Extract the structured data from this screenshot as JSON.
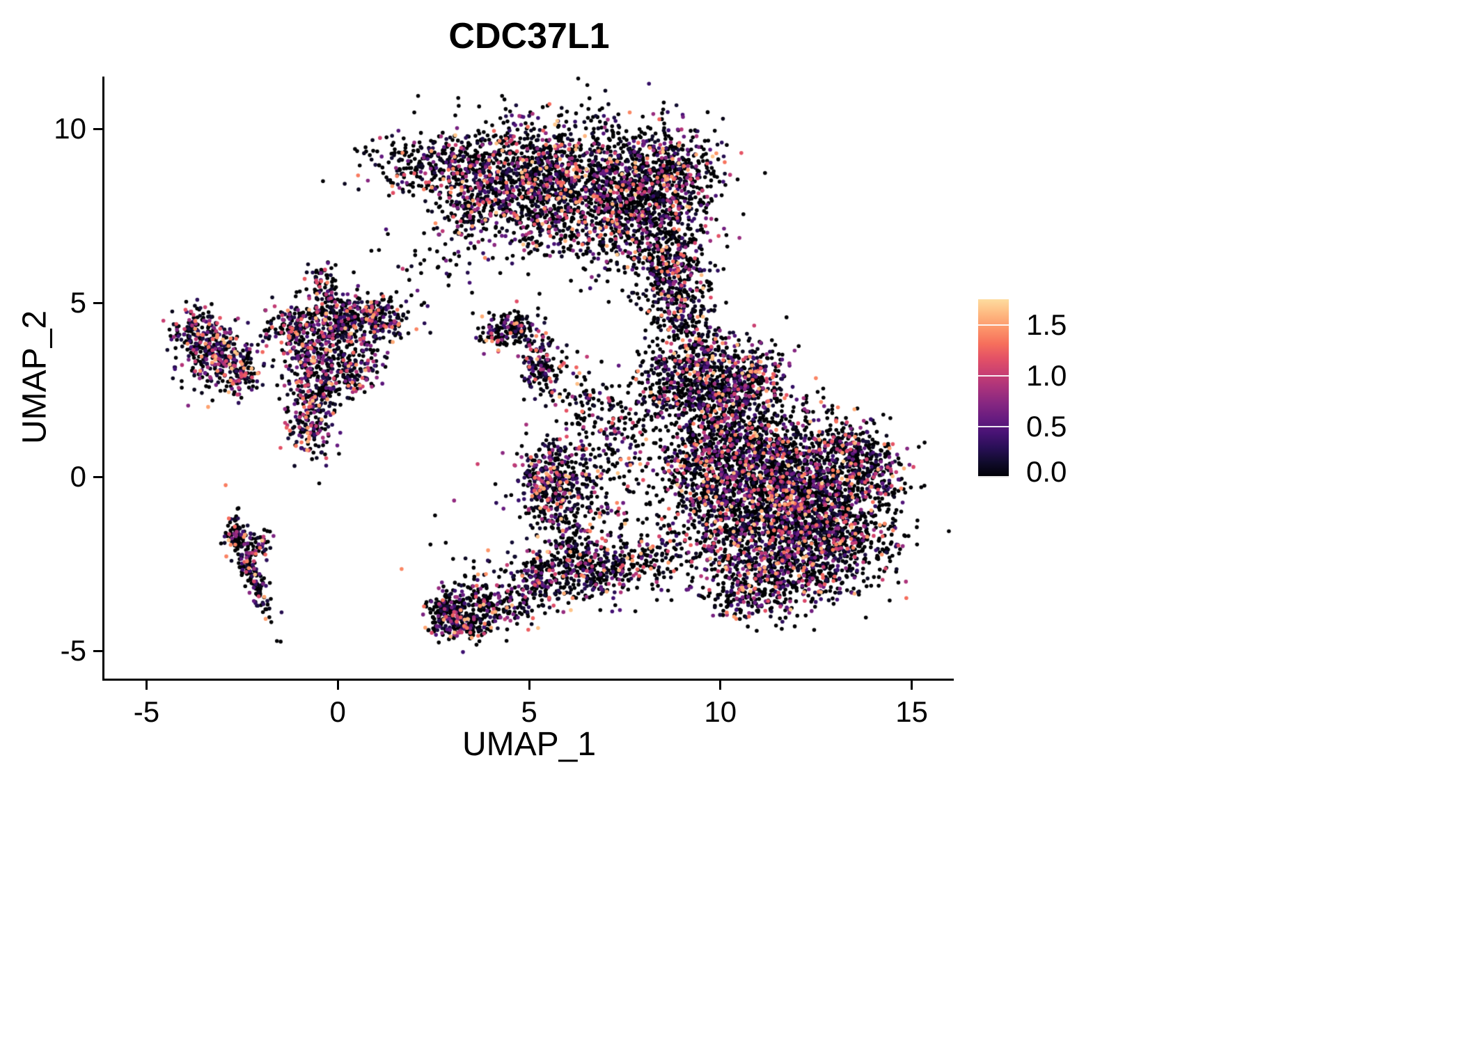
{
  "title": "CDC37L1",
  "chart_data": {
    "type": "scatter",
    "title": "CDC37L1",
    "xlabel": "UMAP_1",
    "ylabel": "UMAP_2",
    "xlim": [
      -6.1,
      16.1
    ],
    "ylim": [
      -5.8,
      11.5
    ],
    "xticks": [
      -5,
      0,
      5,
      10,
      15
    ],
    "xtick_labels": [
      "-5",
      "0",
      "5",
      "10",
      "15"
    ],
    "yticks": [
      -5,
      0,
      5,
      10
    ],
    "ytick_labels": [
      "-5",
      "0",
      "5",
      "10"
    ],
    "grid": false,
    "background": "#ffffff",
    "point_radius": 2.8,
    "colormap": [
      "#000004",
      "#140e36",
      "#3b0f70",
      "#641a80",
      "#8c2981",
      "#b73779",
      "#de4968",
      "#f7705c",
      "#fe9f6d",
      "#fece91",
      "#fcfdbf"
    ],
    "colormap_top_fraction": 0.93,
    "legend": {
      "position": "right",
      "min": 0,
      "max": 1.75,
      "ticks": [
        0.0,
        0.5,
        1.0,
        1.5
      ],
      "tick_labels": [
        "0.0",
        "0.5",
        "1.0",
        "1.5"
      ]
    },
    "expression_zero_fraction": 0.58,
    "clusters": [
      {
        "cx": 2.6,
        "cy": 9.0,
        "sx": 0.9,
        "sy": 0.45,
        "n": 320
      },
      {
        "cx": 4.6,
        "cy": 8.6,
        "sx": 1.0,
        "sy": 0.8,
        "n": 650
      },
      {
        "cx": 6.4,
        "cy": 8.6,
        "sx": 1.2,
        "sy": 0.9,
        "n": 900
      },
      {
        "cx": 7.9,
        "cy": 7.6,
        "sx": 0.9,
        "sy": 1.0,
        "n": 700
      },
      {
        "cx": 8.9,
        "cy": 8.8,
        "sx": 0.6,
        "sy": 0.7,
        "n": 300
      },
      {
        "cx": 8.7,
        "cy": 6.2,
        "sx": 0.5,
        "sy": 0.8,
        "n": 280
      },
      {
        "cx": 5.6,
        "cy": 7.3,
        "sx": 1.2,
        "sy": 0.5,
        "n": 160
      },
      {
        "cx": 3.6,
        "cy": 7.8,
        "sx": 0.5,
        "sy": 0.5,
        "n": 90
      },
      {
        "cx": 3.1,
        "cy": 6.6,
        "sx": 0.5,
        "sy": 0.5,
        "n": 40
      },
      {
        "cx": 8.9,
        "cy": 4.9,
        "sx": 0.45,
        "sy": 0.7,
        "n": 170
      },
      {
        "cx": 9.4,
        "cy": 3.6,
        "sx": 0.5,
        "sy": 0.7,
        "n": 260
      },
      {
        "cx": 8.6,
        "cy": 2.6,
        "sx": 0.5,
        "sy": 0.5,
        "n": 150
      },
      {
        "cx": 9.9,
        "cy": 2.2,
        "sx": 0.8,
        "sy": 0.7,
        "n": 500
      },
      {
        "cx": 10.8,
        "cy": 2.9,
        "sx": 0.5,
        "sy": 0.45,
        "n": 200
      },
      {
        "cx": 10.8,
        "cy": 0.6,
        "sx": 1.0,
        "sy": 0.9,
        "n": 900
      },
      {
        "cx": 12.0,
        "cy": -0.4,
        "sx": 1.0,
        "sy": 0.9,
        "n": 900
      },
      {
        "cx": 12.9,
        "cy": -1.7,
        "sx": 0.9,
        "sy": 0.8,
        "n": 700
      },
      {
        "cx": 10.4,
        "cy": -1.6,
        "sx": 0.9,
        "sy": 0.8,
        "n": 600
      },
      {
        "cx": 11.5,
        "cy": -2.9,
        "sx": 1.0,
        "sy": 0.5,
        "n": 350
      },
      {
        "cx": 14.0,
        "cy": 0.1,
        "sx": 0.45,
        "sy": 0.5,
        "n": 200
      },
      {
        "cx": 9.3,
        "cy": 0.3,
        "sx": 0.5,
        "sy": 0.8,
        "n": 250
      },
      {
        "cx": 13.3,
        "cy": 0.9,
        "sx": 0.5,
        "sy": 0.4,
        "n": 150
      },
      {
        "cx": 10.8,
        "cy": -3.6,
        "sx": 0.6,
        "sy": 0.3,
        "n": 120
      },
      {
        "cx": -3.1,
        "cy": 3.4,
        "sx": 0.5,
        "sy": 0.45,
        "n": 320,
        "w": 1.3
      },
      {
        "cx": -3.7,
        "cy": 4.2,
        "sx": 0.3,
        "sy": 0.3,
        "n": 110,
        "w": 1.3
      },
      {
        "cx": -2.5,
        "cy": 2.9,
        "sx": 0.3,
        "sy": 0.25,
        "n": 60,
        "w": 1.3
      },
      {
        "cx": 0.1,
        "cy": 4.5,
        "sx": 0.75,
        "sy": 0.4,
        "n": 420,
        "w": 1.3
      },
      {
        "cx": -0.6,
        "cy": 3.4,
        "sx": 0.5,
        "sy": 0.5,
        "n": 230,
        "w": 1.3
      },
      {
        "cx": -0.7,
        "cy": 1.7,
        "sx": 0.3,
        "sy": 0.6,
        "n": 200,
        "w": 1.3
      },
      {
        "cx": -0.3,
        "cy": 2.6,
        "sx": 0.4,
        "sy": 0.4,
        "n": 120
      },
      {
        "cx": 0.6,
        "cy": 3.1,
        "sx": 0.35,
        "sy": 0.35,
        "n": 90
      },
      {
        "cx": -0.4,
        "cy": 5.5,
        "sx": 0.25,
        "sy": 0.35,
        "n": 70
      },
      {
        "cx": 1.1,
        "cy": 4.6,
        "sx": 0.4,
        "sy": 0.3,
        "n": 90,
        "w": 1.3
      },
      {
        "cx": -1.3,
        "cy": 4.3,
        "sx": 0.4,
        "sy": 0.3,
        "n": 80
      },
      {
        "cx": 4.6,
        "cy": 4.3,
        "sx": 0.35,
        "sy": 0.3,
        "n": 130
      },
      {
        "cx": 5.3,
        "cy": 3.2,
        "sx": 0.25,
        "sy": 0.45,
        "n": 150,
        "w": 1.3
      },
      {
        "cx": 4.1,
        "cy": 4.0,
        "sx": 0.25,
        "sy": 0.2,
        "n": 40
      },
      {
        "cx": -2.3,
        "cy": -2.6,
        "sx": 0.15,
        "sy": 0.8,
        "n": 180,
        "rot": 17
      },
      {
        "cx": -2.6,
        "cy": -1.6,
        "sx": 0.2,
        "sy": 0.2,
        "n": 50
      },
      {
        "cx": -2.0,
        "cy": -1.9,
        "sx": 0.15,
        "sy": 0.25,
        "n": 40
      },
      {
        "cx": 3.2,
        "cy": -4.1,
        "sx": 0.45,
        "sy": 0.3,
        "n": 280
      },
      {
        "cx": 2.9,
        "cy": -3.7,
        "sx": 0.25,
        "sy": 0.25,
        "n": 80
      },
      {
        "cx": 4.2,
        "cy": -3.6,
        "sx": 0.55,
        "sy": 0.3,
        "n": 150,
        "rot": -20
      },
      {
        "cx": 5.3,
        "cy": -3.0,
        "sx": 0.5,
        "sy": 0.35,
        "n": 170,
        "rot": -25
      },
      {
        "cx": 6.2,
        "cy": -2.5,
        "sx": 0.5,
        "sy": 0.4,
        "n": 160
      },
      {
        "cx": 7.0,
        "cy": -2.7,
        "sx": 0.5,
        "sy": 0.4,
        "n": 130
      },
      {
        "cx": 7.9,
        "cy": -2.5,
        "sx": 0.5,
        "sy": 0.5,
        "n": 130
      },
      {
        "cx": 5.9,
        "cy": -1.2,
        "sx": 0.4,
        "sy": 0.7,
        "n": 170
      },
      {
        "cx": 5.4,
        "cy": -0.1,
        "sx": 0.45,
        "sy": 0.55,
        "n": 260,
        "w": 1.3
      },
      {
        "cx": 6.3,
        "cy": 0.2,
        "sx": 0.5,
        "sy": 0.5,
        "n": 90
      },
      {
        "cx": 7.2,
        "cy": -0.6,
        "sx": 0.8,
        "sy": 0.8,
        "n": 110
      },
      {
        "cx": 6.6,
        "cy": 2.0,
        "sx": 0.45,
        "sy": 0.55,
        "n": 110
      },
      {
        "cx": 7.6,
        "cy": 1.2,
        "sx": 0.5,
        "sy": 0.5,
        "n": 70
      },
      {
        "cx": 4.0,
        "cy": -2.0,
        "sx": 1.0,
        "sy": 1.0,
        "n": 30
      },
      {
        "cx": 2.5,
        "cy": 5.9,
        "sx": 0.8,
        "sy": 0.6,
        "n": 25
      }
    ]
  }
}
